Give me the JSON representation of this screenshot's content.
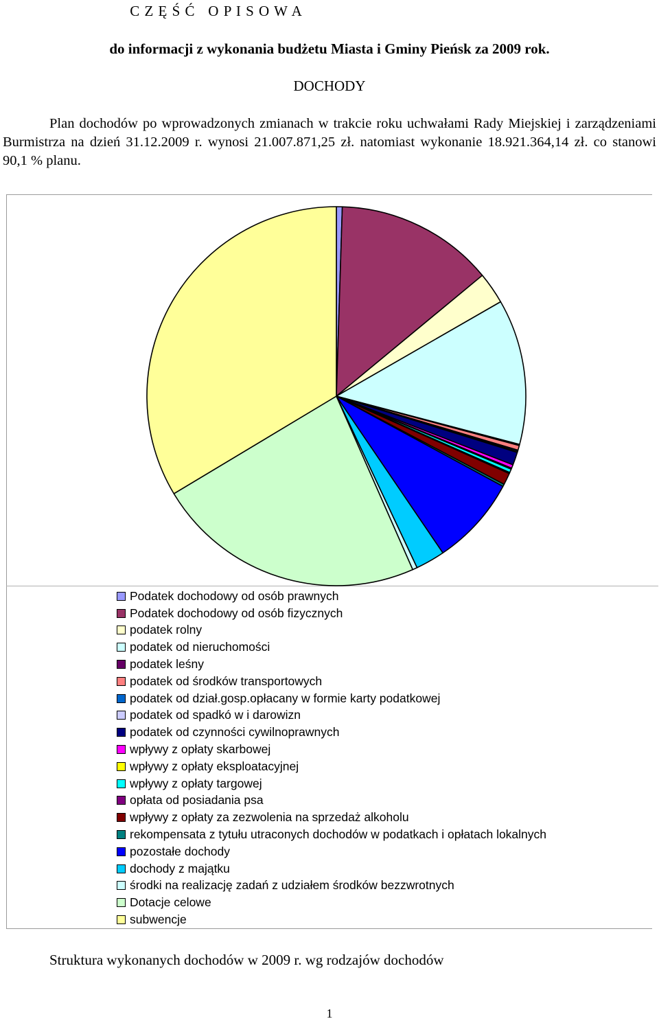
{
  "header": {
    "part_title": "C Z Ę Ś Ć   O P I S O W A",
    "subtitle": "do informacji z wykonania budżetu Miasta i Gminy Pieńsk za  2009 rok.",
    "section_heading": "DOCHODY",
    "intro": "Plan dochodów po wprowadzonych zmianach w trakcie roku uchwałami Rady Miejskiej i zarządzeniami Burmistrza na dzień 31.12.2009 r. wynosi 21.007.871,25 zł.  natomiast wykonanie 18.921.364,14 zł. co stanowi  90,1 % planu."
  },
  "chart_data": {
    "type": "pie",
    "title": "",
    "legend_position": "bottom",
    "series": [
      {
        "name": "Podatek dochodowy od osób prawnych",
        "value": 0.5,
        "color": "#9999ff"
      },
      {
        "name": "Podatek dochodowy od osób fizycznych",
        "value": 13.5,
        "color": "#993366"
      },
      {
        "name": "podatek rolny",
        "value": 2.7,
        "color": "#ffffcc"
      },
      {
        "name": "podatek od nieruchomości",
        "value": 12.4,
        "color": "#ccffff"
      },
      {
        "name": "podatek leśny",
        "value": 0.1,
        "color": "#660066"
      },
      {
        "name": "podatek od środków transportowych",
        "value": 0.4,
        "color": "#ff8080"
      },
      {
        "name": "podatek od dział.gosp.opłacany w formie karty podatkowej",
        "value": 0.1,
        "color": "#0066cc"
      },
      {
        "name": "podatek od spadkó w i darowizn",
        "value": 0.1,
        "color": "#ccccff"
      },
      {
        "name": "podatek od czynności cywilnoprawnych",
        "value": 1.1,
        "color": "#000080"
      },
      {
        "name": "wpływy z opłaty skarbowej",
        "value": 0.3,
        "color": "#ff00ff"
      },
      {
        "name": "wpływy z opłaty eksploatacyjnej",
        "value": 0.1,
        "color": "#ffff00"
      },
      {
        "name": "wpływy z opłaty targowej",
        "value": 0.3,
        "color": "#00ffff"
      },
      {
        "name": "opłata od posiadania psa",
        "value": 0.1,
        "color": "#800080"
      },
      {
        "name": "wpływy z opłaty za zezwolenia na sprzedaż alkoholu",
        "value": 1.0,
        "color": "#800000"
      },
      {
        "name": "rekompensata z tytułu utraconych dochodów w podatkach i opłatach lokalnych",
        "value": 0.2,
        "color": "#008080"
      },
      {
        "name": "pozostałe dochody",
        "value": 7.6,
        "color": "#0000ff"
      },
      {
        "name": "dochody z majątku",
        "value": 2.5,
        "color": "#00ccff"
      },
      {
        "name": "środki na realizację zadań z udziałem środków bezzwrotnych",
        "value": 0.4,
        "color": "#ccffff"
      },
      {
        "name": "Dotacje celowe",
        "value": 23.0,
        "color": "#ccffcc"
      },
      {
        "name": "subwencje",
        "value": 33.6,
        "color": "#ffff99"
      }
    ]
  },
  "footer": {
    "caption": "Struktura wykonanych dochodów w 2009 r. wg rodzajów dochodów",
    "page_number": "1"
  }
}
